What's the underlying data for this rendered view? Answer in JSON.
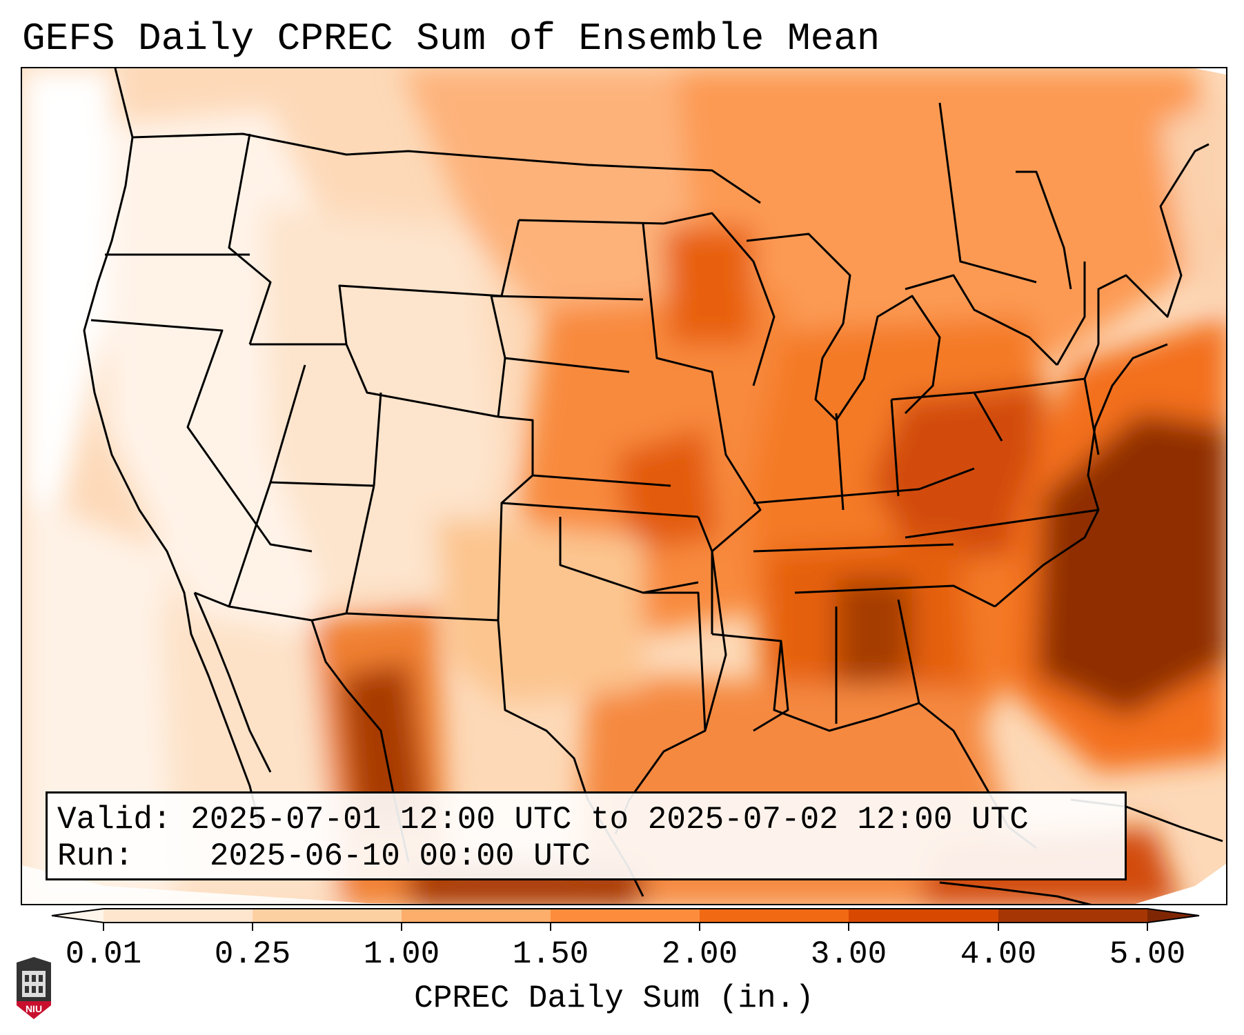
{
  "title": "GEFS Daily CPREC Sum of Ensemble Mean",
  "info": {
    "valid_label": "Valid:",
    "valid_value": "2025-07-01 12:00 UTC to 2025-07-02 12:00 UTC",
    "run_label": "Run:",
    "run_value": "2025-06-10 00:00 UTC"
  },
  "colorbar": {
    "label": "CPREC Daily Sum (in.)",
    "ticks": [
      "0.01",
      "0.25",
      "1.00",
      "1.50",
      "2.00",
      "3.00",
      "4.00",
      "5.00"
    ],
    "colors": [
      "#fff5eb",
      "#fee6ce",
      "#fdd0a2",
      "#fdae6b",
      "#fd8d3c",
      "#f16913",
      "#d94801",
      "#a63603",
      "#7f2704"
    ]
  },
  "logo": {
    "text": "NIU"
  }
}
